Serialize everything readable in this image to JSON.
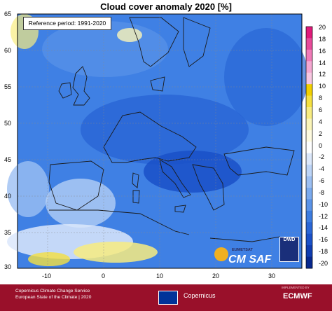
{
  "title": "Cloud cover anomaly 2020 [%]",
  "reference_period": "Reference period: 1991-2020",
  "axes": {
    "lat_labels": [
      "65",
      "60",
      "55",
      "50",
      "45",
      "40",
      "35",
      "30"
    ],
    "lon_labels": [
      "-10",
      "0",
      "10",
      "20",
      "30"
    ]
  },
  "colorbar": {
    "labels": [
      "20",
      "18",
      "16",
      "14",
      "12",
      "10",
      "8",
      "6",
      "4",
      "2",
      "0",
      "-2",
      "-4",
      "-6",
      "-8",
      "-10",
      "-12",
      "-14",
      "-16",
      "-18",
      "-20"
    ],
    "colors": [
      "#e01a7a",
      "#e84a9a",
      "#f07ab8",
      "#f5a8d2",
      "#f8c8e2",
      "#f2d000",
      "#f5e040",
      "#f8ec80",
      "#fbf5b8",
      "#fffbe0",
      "#ffffff",
      "#dce8fb",
      "#bcd4f7",
      "#9cbff2",
      "#7aaaee",
      "#5a93e8",
      "#3c7ce0",
      "#2a66d6",
      "#1a50c8",
      "#0f3cb0",
      "#07288f"
    ]
  },
  "logos": {
    "eumetsat": "EUMETSAT",
    "cmsaf": "CM SAF",
    "dwd": "DWD"
  },
  "footer": {
    "line1": "Copernicus Climate Change Service",
    "line2": "European State of the Climate | 2020",
    "copernicus": "Copernicus",
    "implemented_by": "IMPLEMENTED BY",
    "ecmwf": "ECMWF"
  }
}
